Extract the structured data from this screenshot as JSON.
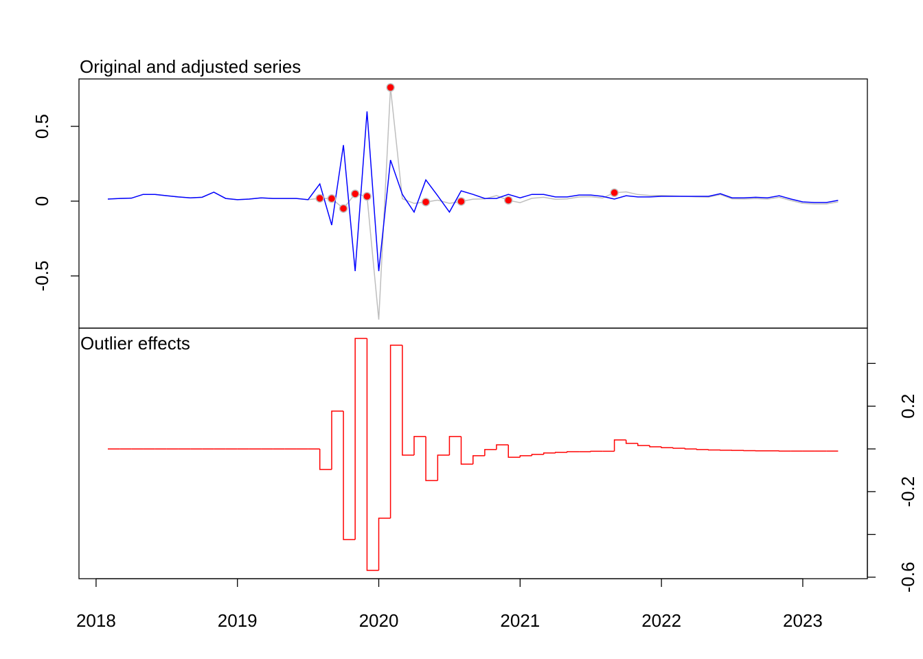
{
  "chart_data": [
    {
      "type": "line",
      "title": "Original and adjusted series",
      "x": [
        2018.083,
        2018.167,
        2018.25,
        2018.333,
        2018.417,
        2018.5,
        2018.583,
        2018.667,
        2018.75,
        2018.833,
        2018.917,
        2019,
        2019.083,
        2019.167,
        2019.25,
        2019.333,
        2019.417,
        2019.5,
        2019.583,
        2019.667,
        2019.75,
        2019.833,
        2019.917,
        2020,
        2020.083,
        2020.167,
        2020.25,
        2020.333,
        2020.417,
        2020.5,
        2020.583,
        2020.667,
        2020.75,
        2020.833,
        2020.917,
        2021,
        2021.083,
        2021.167,
        2021.25,
        2021.333,
        2021.417,
        2021.5,
        2021.583,
        2021.667,
        2021.75,
        2021.833,
        2021.917,
        2022,
        2022.083,
        2022.167,
        2022.25,
        2022.333,
        2022.417,
        2022.5,
        2022.583,
        2022.667,
        2022.75,
        2022.833,
        2022.917,
        2023,
        2023.083,
        2023.167,
        2023.25
      ],
      "series": [
        {
          "color": "#bebebe",
          "values": [
            0.014,
            0.018,
            0.02,
            0.045,
            0.045,
            0.036,
            0.028,
            0.022,
            0.026,
            0.06,
            0.018,
            0.01,
            0.014,
            0.022,
            0.018,
            0.018,
            0.018,
            0.01,
            0.019,
            0.017,
            -0.049,
            0.049,
            0.032,
            -0.792,
            0.76,
            0.016,
            -0.015,
            -0.006,
            0.007,
            -0.015,
            -0.002,
            0.013,
            0.015,
            0.037,
            0.006,
            -0.01,
            0.019,
            0.026,
            0.012,
            0.015,
            0.028,
            0.03,
            0.021,
            0.056,
            0.062,
            0.044,
            0.038,
            0.038,
            0.035,
            0.032,
            0.029,
            0.027,
            0.044,
            0.015,
            0.014,
            0.017,
            0.013,
            0.026,
            0.004,
            -0.015,
            -0.019,
            -0.019,
            -0.005
          ]
        },
        {
          "color": "#0000ff",
          "values": [
            0.014,
            0.018,
            0.02,
            0.045,
            0.045,
            0.036,
            0.028,
            0.022,
            0.026,
            0.06,
            0.018,
            0.01,
            0.014,
            0.022,
            0.018,
            0.018,
            0.018,
            0.01,
            0.115,
            -0.16,
            0.375,
            -0.468,
            0.6,
            -0.468,
            0.275,
            0.045,
            -0.073,
            0.142,
            0.036,
            -0.073,
            0.069,
            0.045,
            0.018,
            0.018,
            0.045,
            0.022,
            0.045,
            0.045,
            0.028,
            0.028,
            0.041,
            0.041,
            0.032,
            0.014,
            0.036,
            0.028,
            0.028,
            0.032,
            0.032,
            0.032,
            0.032,
            0.032,
            0.05,
            0.022,
            0.022,
            0.026,
            0.022,
            0.036,
            0.014,
            -0.005,
            -0.009,
            -0.009,
            0.005
          ]
        }
      ],
      "outliers": {
        "color": "#ff0000",
        "x": [
          2019.583,
          2019.667,
          2019.75,
          2019.833,
          2019.917,
          2020.083,
          2020.333,
          2020.583,
          2020.917,
          2021.667
        ],
        "values": [
          0.019,
          0.017,
          -0.049,
          0.049,
          0.032,
          0.76,
          -0.006,
          -0.002,
          0.006,
          0.056
        ]
      },
      "xlim": [
        2017.879,
        2023.457
      ],
      "ylim": [
        -0.849,
        0.817
      ],
      "yticks": [
        0.5,
        0,
        -0.5
      ]
    },
    {
      "type": "step",
      "title": "Outlier effects",
      "color": "#ff0000",
      "x": [
        2018.083,
        2018.167,
        2018.25,
        2018.333,
        2018.417,
        2018.5,
        2018.583,
        2018.667,
        2018.75,
        2018.833,
        2018.917,
        2019,
        2019.083,
        2019.167,
        2019.25,
        2019.333,
        2019.417,
        2019.5,
        2019.583,
        2019.667,
        2019.75,
        2019.833,
        2019.917,
        2020,
        2020.083,
        2020.167,
        2020.25,
        2020.333,
        2020.417,
        2020.5,
        2020.583,
        2020.667,
        2020.75,
        2020.833,
        2020.917,
        2021,
        2021.083,
        2021.167,
        2021.25,
        2021.333,
        2021.417,
        2021.5,
        2021.583,
        2021.667,
        2021.75,
        2021.833,
        2021.917,
        2022,
        2022.083,
        2022.167,
        2022.25,
        2022.333,
        2022.417,
        2022.5,
        2022.583,
        2022.667,
        2022.75,
        2022.833,
        2022.917,
        2023,
        2023.083,
        2023.167,
        2023.25
      ],
      "values": [
        0,
        0,
        0,
        0,
        0,
        0,
        0,
        0,
        0,
        0,
        0,
        0,
        0,
        0,
        0,
        0,
        0,
        0,
        -0.096,
        0.177,
        -0.424,
        0.517,
        -0.568,
        -0.324,
        0.485,
        -0.029,
        0.058,
        -0.148,
        -0.029,
        0.058,
        -0.071,
        -0.032,
        -0.003,
        0.019,
        -0.039,
        -0.032,
        -0.026,
        -0.019,
        -0.016,
        -0.013,
        -0.013,
        -0.011,
        -0.011,
        0.042,
        0.026,
        0.016,
        0.01,
        0.006,
        0.003,
        0,
        -0.003,
        -0.005,
        -0.006,
        -0.007,
        -0.008,
        -0.009,
        -0.009,
        -0.01,
        -0.01,
        -0.01,
        -0.01,
        -0.01,
        -0.01
      ],
      "xlim": [
        2017.879,
        2023.457
      ],
      "xticks": [
        2018,
        2019,
        2020,
        2021,
        2022,
        2023
      ],
      "y2lim": [
        -0.607,
        0.565
      ],
      "y2ticks": [
        0.2,
        -0.2,
        -0.6
      ],
      "y2minor_ticks": [
        0.4,
        0,
        -0.4
      ]
    }
  ]
}
